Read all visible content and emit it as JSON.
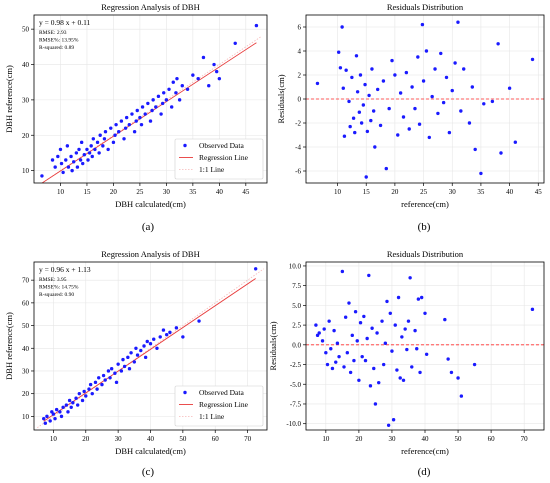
{
  "colors": {
    "points": "#1a1aff",
    "regression": "#e83a3a",
    "identity": "#f6b8b8",
    "zero_line": "#ff2a2a",
    "grid": "#e6e6e6",
    "axis": "#000000"
  },
  "chart_data": [
    {
      "panel_label": "(a)",
      "type": "scatter",
      "title": "Regression Analysis of DBH",
      "xlabel": "DBH calculated(cm)",
      "ylabel": "DBH reference(cm)",
      "xlim": [
        5,
        49
      ],
      "ylim": [
        6.5,
        54
      ],
      "xticks": [
        10,
        15,
        20,
        25,
        30,
        35,
        40,
        45
      ],
      "yticks": [
        10,
        20,
        30,
        40,
        50
      ],
      "grid": true,
      "legend": {
        "position": "bottom-right",
        "entries": [
          "Observed Data",
          "Regression Line",
          "1:1 Line"
        ]
      },
      "annotation": [
        "y = 0.98 x + 0.11",
        "RMSE: 2.93",
        "RMSE%: 13.95%",
        "R-squared: 0.89"
      ],
      "regression": {
        "slope": 0.98,
        "intercept": 0.11
      },
      "points": [
        [
          6.5,
          8.5
        ],
        [
          8.5,
          13
        ],
        [
          9,
          11
        ],
        [
          9.5,
          14
        ],
        [
          10,
          16
        ],
        [
          10.2,
          12
        ],
        [
          10.5,
          9.5
        ],
        [
          11,
          13
        ],
        [
          11.3,
          17
        ],
        [
          11.5,
          11
        ],
        [
          12,
          14
        ],
        [
          12.2,
          10
        ],
        [
          12.5,
          12.5
        ],
        [
          13,
          15
        ],
        [
          13.2,
          11
        ],
        [
          13.5,
          16
        ],
        [
          13.8,
          13
        ],
        [
          14,
          18
        ],
        [
          14.2,
          12
        ],
        [
          14.5,
          14.5
        ],
        [
          15,
          16
        ],
        [
          15.2,
          13
        ],
        [
          15.5,
          15
        ],
        [
          15.8,
          17
        ],
        [
          16,
          14
        ],
        [
          16.2,
          19
        ],
        [
          16.5,
          16
        ],
        [
          17,
          18
        ],
        [
          17.3,
          15
        ],
        [
          17.5,
          20
        ],
        [
          18,
          17
        ],
        [
          18.3,
          19
        ],
        [
          18.5,
          21
        ],
        [
          19,
          16
        ],
        [
          19.5,
          22
        ],
        [
          20,
          18
        ],
        [
          20.3,
          20
        ],
        [
          20.5,
          23
        ],
        [
          21,
          21
        ],
        [
          21.5,
          24
        ],
        [
          22,
          19
        ],
        [
          22.3,
          22
        ],
        [
          22.5,
          25
        ],
        [
          23,
          23
        ],
        [
          23.5,
          26
        ],
        [
          24,
          21
        ],
        [
          24.3,
          24
        ],
        [
          24.5,
          27
        ],
        [
          25,
          25
        ],
        [
          25.3,
          23
        ],
        [
          25.5,
          28
        ],
        [
          26,
          26
        ],
        [
          26.5,
          29
        ],
        [
          27,
          24
        ],
        [
          27.3,
          27
        ],
        [
          27.5,
          30
        ],
        [
          28,
          28
        ],
        [
          28.5,
          31
        ],
        [
          29,
          26
        ],
        [
          29.3,
          29
        ],
        [
          29.5,
          32
        ],
        [
          30,
          30
        ],
        [
          30.5,
          33
        ],
        [
          31,
          28
        ],
        [
          31.3,
          35
        ],
        [
          31.8,
          32
        ],
        [
          32,
          36
        ],
        [
          32.5,
          30
        ],
        [
          33,
          34
        ],
        [
          34,
          33
        ],
        [
          35,
          37
        ],
        [
          36,
          36
        ],
        [
          37,
          42
        ],
        [
          38,
          34
        ],
        [
          39,
          40
        ],
        [
          39.5,
          38
        ],
        [
          40,
          36
        ],
        [
          43,
          46
        ],
        [
          47,
          51
        ]
      ]
    },
    {
      "panel_label": "(b)",
      "type": "scatter",
      "title": "Residuals Distribution",
      "xlabel": "reference(cm)",
      "ylabel": "Residuals(cm)",
      "xlim": [
        4.5,
        46
      ],
      "ylim": [
        -7,
        7
      ],
      "xticks": [
        10,
        15,
        20,
        25,
        30,
        35,
        40,
        45
      ],
      "yticks": [
        -6,
        -4,
        -2,
        0,
        2,
        4,
        6
      ],
      "grid": true,
      "zero_line": 0,
      "points": [
        [
          6.5,
          1.3
        ],
        [
          10.2,
          3.9
        ],
        [
          10.5,
          2.6
        ],
        [
          10.8,
          6.0
        ],
        [
          11,
          0.9
        ],
        [
          11.2,
          -3.1
        ],
        [
          11.5,
          2.4
        ],
        [
          12,
          -0.2
        ],
        [
          12.2,
          -2.3
        ],
        [
          12.5,
          1.8
        ],
        [
          12.8,
          -1.6
        ],
        [
          13,
          -2.8
        ],
        [
          13.3,
          3.6
        ],
        [
          13.5,
          0.6
        ],
        [
          13.8,
          -1.1
        ],
        [
          14,
          2.0
        ],
        [
          14.2,
          -2.0
        ],
        [
          14.5,
          -0.5
        ],
        [
          14.8,
          1.2
        ],
        [
          15,
          -6.5
        ],
        [
          15.2,
          -2.7
        ],
        [
          15.5,
          0.3
        ],
        [
          15.8,
          -1.8
        ],
        [
          16,
          2.5
        ],
        [
          16.3,
          -1.0
        ],
        [
          16.5,
          -4.0
        ],
        [
          17,
          0.8
        ],
        [
          17.5,
          -2.2
        ],
        [
          18,
          1.5
        ],
        [
          18.5,
          -5.8
        ],
        [
          19,
          -0.8
        ],
        [
          19.5,
          3.2
        ],
        [
          20,
          2.0
        ],
        [
          20.5,
          -3.0
        ],
        [
          21,
          0.5
        ],
        [
          21.5,
          -1.5
        ],
        [
          22,
          2.2
        ],
        [
          22.5,
          -2.5
        ],
        [
          23,
          1.0
        ],
        [
          23.5,
          -0.8
        ],
        [
          24,
          3.5
        ],
        [
          24.3,
          -2.1
        ],
        [
          24.8,
          6.2
        ],
        [
          25,
          1.5
        ],
        [
          25.5,
          4.0
        ],
        [
          26,
          -3.2
        ],
        [
          26.5,
          0.2
        ],
        [
          27,
          2.5
        ],
        [
          27.5,
          -1.2
        ],
        [
          28,
          3.8
        ],
        [
          28.5,
          -0.3
        ],
        [
          29,
          1.8
        ],
        [
          29.5,
          -2.8
        ],
        [
          30,
          0.7
        ],
        [
          30.5,
          3.0
        ],
        [
          31,
          6.4
        ],
        [
          31.5,
          -1.0
        ],
        [
          32,
          2.5
        ],
        [
          33,
          -2.0
        ],
        [
          33.5,
          1.0
        ],
        [
          34,
          -4.2
        ],
        [
          35,
          -6.2
        ],
        [
          35.5,
          -0.4
        ],
        [
          37,
          -0.2
        ],
        [
          38,
          4.6
        ],
        [
          38.5,
          -4.5
        ],
        [
          40,
          0.9
        ],
        [
          41,
          -3.6
        ],
        [
          44,
          3.3
        ]
      ]
    },
    {
      "panel_label": "(c)",
      "type": "scatter",
      "title": "Regression Analysis of DBH",
      "xlabel": "DBH calculated(cm)",
      "ylabel": "DBH reference(cm)",
      "xlim": [
        4,
        76
      ],
      "ylim": [
        4,
        78
      ],
      "xticks": [
        10,
        20,
        30,
        40,
        50,
        60,
        70
      ],
      "yticks": [
        10,
        20,
        30,
        40,
        50,
        60,
        70
      ],
      "grid": true,
      "legend": {
        "position": "bottom-right",
        "entries": [
          "Observed Data",
          "Regression Line",
          "1:1 Line"
        ]
      },
      "annotation": [
        "y = 0.96 x + 1.13",
        "RMSE: 3.95",
        "RMSE%: 14.75%",
        "R-squared: 0.90"
      ],
      "regression": {
        "slope": 0.96,
        "intercept": 1.13
      },
      "points": [
        [
          7,
          9
        ],
        [
          7.5,
          7
        ],
        [
          8,
          10
        ],
        [
          9,
          8
        ],
        [
          9.5,
          12
        ],
        [
          10,
          11
        ],
        [
          10.5,
          9
        ],
        [
          11,
          13
        ],
        [
          12,
          12
        ],
        [
          12.5,
          10
        ],
        [
          13,
          14
        ],
        [
          14,
          15
        ],
        [
          14.5,
          12
        ],
        [
          15,
          17
        ],
        [
          15.5,
          14
        ],
        [
          16,
          16
        ],
        [
          17,
          18
        ],
        [
          17.5,
          15
        ],
        [
          18,
          20
        ],
        [
          19,
          17
        ],
        [
          19.5,
          21
        ],
        [
          20,
          19
        ],
        [
          21,
          22
        ],
        [
          21.5,
          24
        ],
        [
          22,
          20
        ],
        [
          23,
          25
        ],
        [
          23.5,
          22
        ],
        [
          24,
          27
        ],
        [
          25,
          24
        ],
        [
          25.5,
          28
        ],
        [
          26,
          26
        ],
        [
          27,
          30
        ],
        [
          27.5,
          27
        ],
        [
          28,
          31
        ],
        [
          29,
          29
        ],
        [
          29.5,
          25
        ],
        [
          30,
          33
        ],
        [
          31,
          30
        ],
        [
          31.5,
          35
        ],
        [
          32,
          32
        ],
        [
          33,
          36
        ],
        [
          33.5,
          31
        ],
        [
          34,
          38
        ],
        [
          35,
          34
        ],
        [
          35.5,
          40
        ],
        [
          36,
          37
        ],
        [
          37,
          39
        ],
        [
          38,
          41
        ],
        [
          38.5,
          36
        ],
        [
          39,
          43
        ],
        [
          40,
          42
        ],
        [
          41,
          44
        ],
        [
          42,
          40
        ],
        [
          43,
          45
        ],
        [
          44,
          48
        ],
        [
          45,
          46
        ],
        [
          46,
          47
        ],
        [
          48,
          49
        ],
        [
          50,
          45
        ],
        [
          55,
          52
        ],
        [
          72.5,
          75
        ]
      ]
    },
    {
      "panel_label": "(d)",
      "type": "scatter",
      "title": "Residuals Distribution",
      "xlabel": "reference(cm)",
      "ylabel": "Residuals(cm)",
      "xlim": [
        4,
        76
      ],
      "ylim": [
        -10.8,
        10.5
      ],
      "xticks": [
        10,
        20,
        30,
        40,
        50,
        60,
        70
      ],
      "yticks": [
        -10.0,
        -7.5,
        -5.0,
        -2.5,
        0.0,
        2.5,
        5.0,
        7.5,
        10.0
      ],
      "grid": true,
      "zero_line": 0,
      "points": [
        [
          7,
          2.5
        ],
        [
          7.5,
          1.2
        ],
        [
          8,
          1.5
        ],
        [
          9,
          0.5
        ],
        [
          9.5,
          2.0
        ],
        [
          10,
          -1.0
        ],
        [
          10.5,
          -2.5
        ],
        [
          11,
          3.0
        ],
        [
          11.5,
          -0.5
        ],
        [
          12,
          -3.0
        ],
        [
          12.5,
          1.8
        ],
        [
          13,
          -2.2
        ],
        [
          13.5,
          0.2
        ],
        [
          14,
          -1.5
        ],
        [
          15,
          9.3
        ],
        [
          15.5,
          -2.8
        ],
        [
          16,
          3.5
        ],
        [
          16.5,
          -1.0
        ],
        [
          17,
          5.3
        ],
        [
          17.5,
          -3.5
        ],
        [
          18,
          1.2
        ],
        [
          18.5,
          -2.0
        ],
        [
          19,
          4.2
        ],
        [
          19.5,
          0.5
        ],
        [
          20,
          -4.5
        ],
        [
          20.5,
          2.8
        ],
        [
          21,
          -1.5
        ],
        [
          21.5,
          3.6
        ],
        [
          22,
          -2.0
        ],
        [
          22.5,
          0.8
        ],
        [
          23,
          8.8
        ],
        [
          23.5,
          -5.2
        ],
        [
          24,
          2.1
        ],
        [
          24.5,
          -3.0
        ],
        [
          25,
          -7.5
        ],
        [
          25.5,
          1.5
        ],
        [
          26,
          -4.8
        ],
        [
          27,
          3.0
        ],
        [
          27.5,
          -2.5
        ],
        [
          28,
          0.2
        ],
        [
          28.5,
          5.5
        ],
        [
          29,
          -10.2
        ],
        [
          29.5,
          4.0
        ],
        [
          30,
          -0.8
        ],
        [
          30.5,
          -9.5
        ],
        [
          31,
          2.5
        ],
        [
          31.5,
          -3.2
        ],
        [
          32,
          6.0
        ],
        [
          32.5,
          -4.2
        ],
        [
          33,
          1.0
        ],
        [
          33.5,
          -4.5
        ],
        [
          34,
          2.0
        ],
        [
          34.5,
          -0.6
        ],
        [
          35,
          3.0
        ],
        [
          35.5,
          8.5
        ],
        [
          36,
          -2.8
        ],
        [
          37,
          1.8
        ],
        [
          37.5,
          -0.5
        ],
        [
          38,
          5.8
        ],
        [
          38.5,
          -3.5
        ],
        [
          39,
          6.0
        ],
        [
          40,
          4.0
        ],
        [
          40.5,
          -1.2
        ],
        [
          46,
          3.2
        ],
        [
          47,
          -1.8
        ],
        [
          48,
          -3.5
        ],
        [
          50,
          -4.2
        ],
        [
          51,
          -6.5
        ],
        [
          55,
          -2.5
        ],
        [
          72.5,
          4.5
        ]
      ]
    }
  ]
}
